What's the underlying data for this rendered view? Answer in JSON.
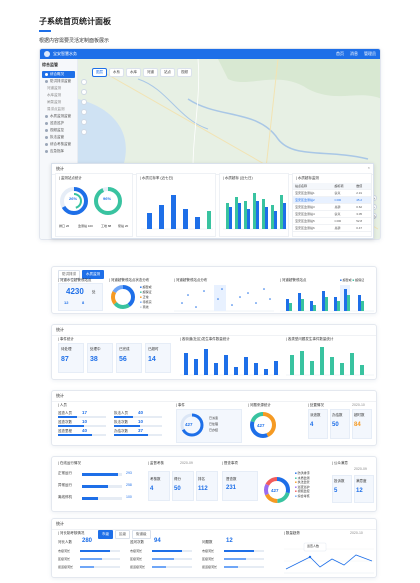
{
  "doc": {
    "title": "子系统首页统计面板",
    "subtitle": "根据内容需要灵活定制面板展示"
  },
  "app": {
    "title": "宝安智慧水务",
    "top_right": [
      "首页",
      "消息",
      "管理员"
    ],
    "side_header": "综合监管",
    "side_items": [
      {
        "label": "综合概况",
        "active": true
      },
      {
        "label": "防洪排涝监管",
        "active": false,
        "subs": [
          "河道监测",
          "水库监测",
          "闸泵监测",
          "易涝点监测"
        ]
      },
      {
        "label": "水质监测监管",
        "active": false,
        "subs": [
          "监测站点",
          "排水户监管",
          "污水处理厂",
          "管网监测"
        ]
      },
      {
        "label": "巡查巡护",
        "active": false
      },
      {
        "label": "视频监控",
        "active": false
      },
      {
        "label": "执法监管",
        "active": false
      },
      {
        "label": "综合考核监管",
        "active": false,
        "subs": [
          "考核指标",
          "考核结果",
          "整改跟踪"
        ]
      },
      {
        "label": "应急指挥",
        "active": false
      }
    ],
    "map_chips": [
      {
        "label": "图层",
        "active": true
      },
      {
        "label": "水系",
        "active": false
      },
      {
        "label": "水库",
        "active": false
      },
      {
        "label": "河道",
        "active": false
      },
      {
        "label": "站点",
        "active": false
      },
      {
        "label": "视频",
        "active": false
      }
    ]
  },
  "float": {
    "title": "统计",
    "c1_title": "| 监测站点统计",
    "c1_nums": [
      "26%",
      "96%"
    ],
    "c1_foot": [
      "排口 26",
      "监测站 100",
      "工地 88",
      "泵站 20"
    ],
    "c2_title": "| 水质达标率 (近七日)",
    "c3_title": "| 水质超标 (近七日)",
    "c4_title": "| 水质超标监测",
    "table_head": [
      "站点名称",
      "超标项",
      "数值"
    ],
    "table_rows": [
      [
        "宝安区监测站1",
        "氨氮",
        "2.31"
      ],
      [
        "宝安区监测站2",
        "COD",
        "45.2"
      ],
      [
        "宝安区监测站3",
        "总磷",
        "0.62"
      ],
      [
        "宝安区监测站4",
        "氨氮",
        "3.05"
      ],
      [
        "宝安区监测站5",
        "COD",
        "52.8"
      ],
      [
        "宝安区监测站6",
        "总磷",
        "0.47"
      ]
    ]
  },
  "p1": {
    "tabs": [
      "防洪排涝",
      "水质监测"
    ],
    "c1_title": "| 河道水位超警戒站点",
    "big": "4230",
    "big_unit": "处",
    "small": [
      "12",
      "8"
    ],
    "c2_title": "| 河道超警戒站点状态分布",
    "legend": [
      "超警戒",
      "超保证",
      "正常",
      "待核实",
      "离线"
    ],
    "c3_title": "| 河道超警戒站点分布",
    "c4_title": "| 河道超警戒站点",
    "c4_legend": [
      "超警戒",
      "超保证"
    ]
  },
  "p2": {
    "title": "统计",
    "c1_title": "| 事件统计",
    "kpis": [
      {
        "label": "待处理",
        "value": "87"
      },
      {
        "label": "处理中",
        "value": "38"
      },
      {
        "label": "已完成",
        "value": "56"
      },
      {
        "label": "已超时",
        "value": "14"
      }
    ],
    "c2_title": "| 各街道(社区)发生事件数量统计",
    "c3_title": "| 各类型问题发生事件数量统计"
  },
  "p3": {
    "title": "统计",
    "c1_title": "| 人员",
    "c1_rows": [
      [
        "巡查人员",
        "17"
      ],
      [
        "巡查次数",
        "10"
      ],
      [
        "巡查里程",
        "40"
      ]
    ],
    "c1_rows2": [
      [
        "执法人员",
        "40"
      ],
      [
        "执法次数",
        "10"
      ],
      [
        "办结次数",
        "37"
      ]
    ],
    "c2_title": "| 事件",
    "c2_center": "427",
    "c2_legend": [
      "已派遣",
      "已处理",
      "已办结"
    ],
    "c3_title": "| 问题来源统计",
    "c3_center": "427",
    "c4_title": "| 处置情况",
    "c4_date": "2020-10",
    "c4_kpis": [
      {
        "label": "派遣数",
        "value": "4"
      },
      {
        "label": "办结数",
        "value": "50"
      },
      {
        "label": "超时数",
        "value": "84"
      }
    ]
  },
  "p4": {
    "c1_title": "| 在线运行情况",
    "rows": [
      {
        "label": "正常运行",
        "value": "293"
      },
      {
        "label": "异常运行",
        "value": "258"
      },
      {
        "label": "离线停机",
        "value": "100"
      }
    ],
    "c2_title": "| 监督考核",
    "c2_date": "2020-09",
    "c2_kpis": [
      {
        "label": "考核数",
        "value": "4"
      },
      {
        "label": "得分",
        "value": "50"
      },
      {
        "label": "排名",
        "value": "112"
      }
    ],
    "c3_title": "| 督查事项",
    "c3_kpi": {
      "label": "督查数",
      "value": "231"
    },
    "c3_center": "427",
    "c3_legend": [
      "防洪排涝",
      "水质监测",
      "执法监管",
      "巡查巡护",
      "视频监控",
      "综合考核"
    ],
    "c4_title": "| 公众满意",
    "c4_date": "2020-09",
    "c4_kpis": [
      {
        "label": "投诉数",
        "value": "5"
      },
      {
        "label": "满意度",
        "value": "12"
      }
    ]
  },
  "p5": {
    "title": "统计",
    "c1_title": "| 河长制考核情况",
    "tabs": [
      "市级",
      "区级",
      "街道级"
    ],
    "groups": [
      {
        "label": "河长人数",
        "value": "280",
        "rows": [
          "市级河长",
          "区级河长",
          "街道级河长"
        ]
      },
      {
        "label": "巡河次数",
        "value": "94",
        "rows": [
          "市级河长",
          "区级河长",
          "街道级河长"
        ]
      },
      {
        "label": "问题数",
        "value": "12",
        "rows": [
          "市级河长",
          "区级河长",
          "街道级河长"
        ]
      }
    ],
    "c2_title": "| 数量趋势",
    "c2_date": "2020-10",
    "tooltip": "巡查人数"
  }
}
